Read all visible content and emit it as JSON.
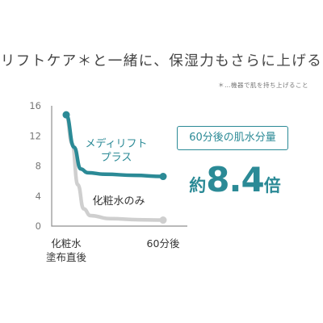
{
  "header": {
    "headline": "リフトケア＊と一緒に、保湿力もさらに上げる",
    "footnote": "＊…機器で肌を持ち上げること"
  },
  "callout": {
    "badge": "60分後の肌水分量",
    "prefix": "約",
    "value": "8.4",
    "suffix": "倍"
  },
  "colors": {
    "teal": "#2b8a96",
    "gray": "#cfcfcf",
    "axis": "#8f8f8f"
  },
  "chart_data": {
    "type": "line",
    "x_tick_labels": [
      "化粧水\n塗布直後",
      "60分後"
    ],
    "y_ticks": [
      0,
      4,
      8,
      12,
      16
    ],
    "ylim": [
      0,
      16
    ],
    "grid": false,
    "series": [
      {
        "name": "メディリフト\nプラス",
        "color": "#2b8a96",
        "start": 14.8,
        "end": 6.6,
        "curve": [
          [
            0,
            14.8
          ],
          [
            0.08,
            10.5
          ],
          [
            0.15,
            7.6
          ],
          [
            0.22,
            7.1
          ],
          [
            0.4,
            6.9
          ],
          [
            0.7,
            6.75
          ],
          [
            1,
            6.6
          ]
        ]
      },
      {
        "name": "化粧水のみ",
        "color": "#cfcfcf",
        "start": 14.8,
        "end": 0.8,
        "curve": [
          [
            0,
            14.8
          ],
          [
            0.06,
            11
          ],
          [
            0.12,
            5.5
          ],
          [
            0.18,
            2.3
          ],
          [
            0.25,
            1.4
          ],
          [
            0.45,
            1.0
          ],
          [
            0.75,
            0.85
          ],
          [
            1,
            0.8
          ]
        ]
      }
    ]
  }
}
